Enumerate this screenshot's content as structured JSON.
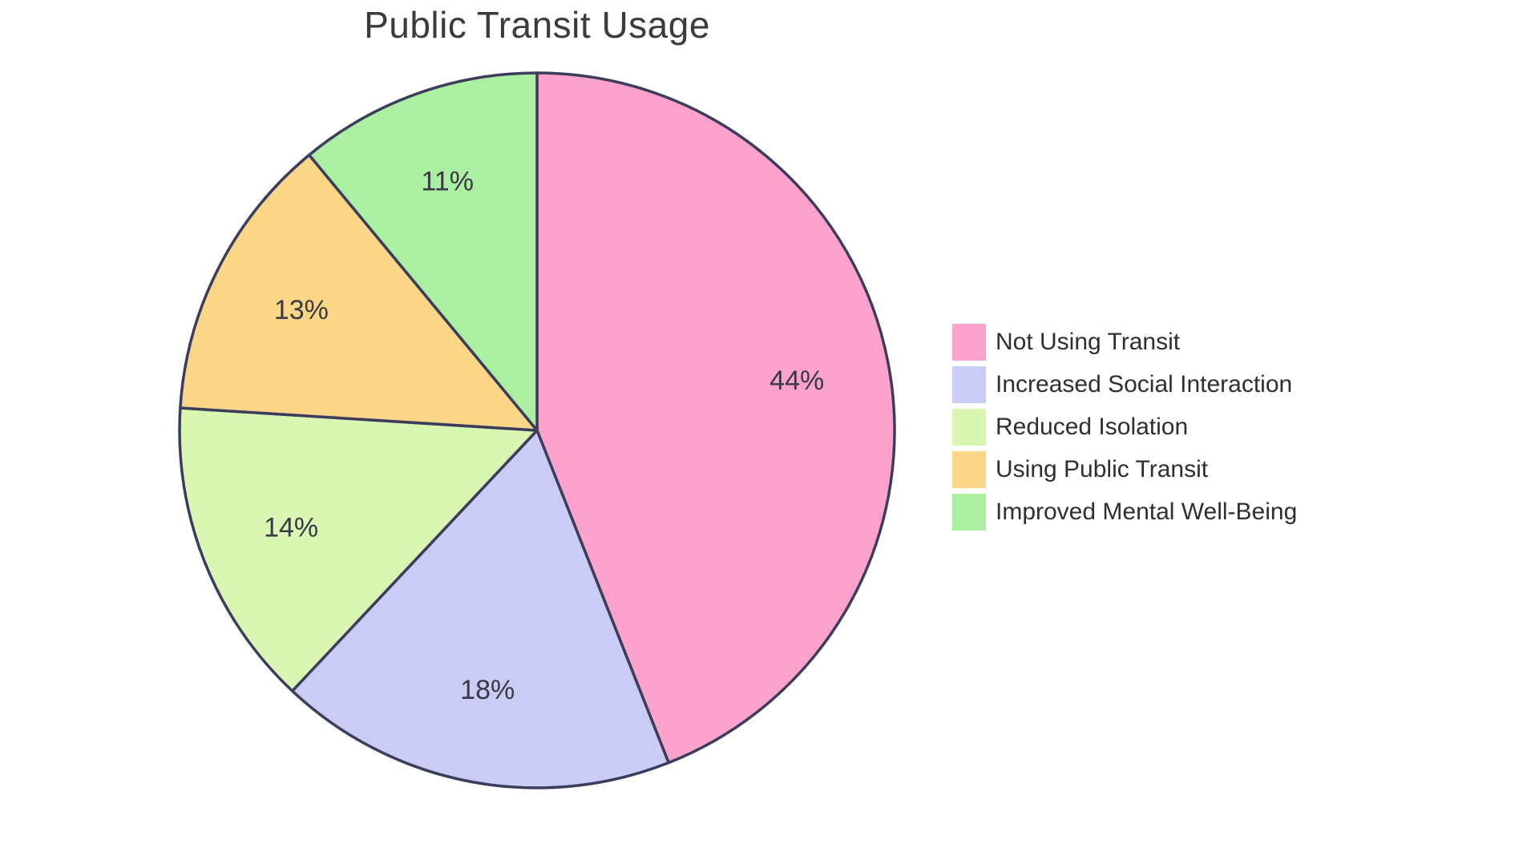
{
  "page": {
    "background_color": "#ffffff"
  },
  "chart_data": {
    "type": "pie",
    "title": "Public Transit Usage",
    "labels": [
      "Not Using Transit",
      "Increased Social Interaction",
      "Reduced Isolation",
      "Using Public Transit",
      "Improved Mental Well-Being"
    ],
    "values": [
      44,
      18,
      14,
      13,
      11
    ],
    "value_labels": [
      "44%",
      "18%",
      "14%",
      "13%",
      "11%"
    ],
    "colors": [
      "#FCA2CC",
      "#CACCF5",
      "#D9F7B2",
      "#FBD687",
      "#ABEFA3"
    ],
    "slice_stroke_color": "#3C3C5C",
    "value_label_color": "#3a3a44",
    "title_color": "#3b3b3b",
    "legend_text_color": "#2f2f2f",
    "start_angle_deg": -90,
    "direction": "clockwise",
    "legend_position": "right",
    "grid": false
  }
}
